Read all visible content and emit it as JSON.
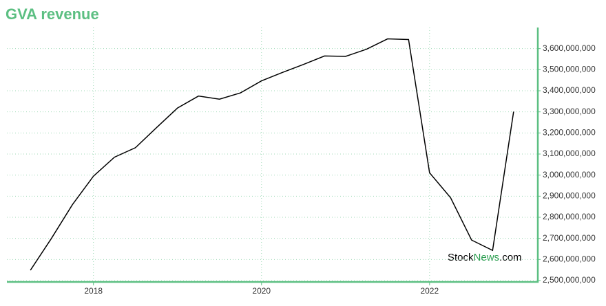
{
  "chart_data": {
    "type": "line",
    "title": "GVA revenue",
    "x": [
      2017.25,
      2017.5,
      2017.75,
      2018.0,
      2018.25,
      2018.5,
      2018.75,
      2019.0,
      2019.25,
      2019.5,
      2019.75,
      2020.0,
      2020.25,
      2020.5,
      2020.75,
      2021.0,
      2021.25,
      2021.5,
      2021.75,
      2022.0,
      2022.25,
      2022.5,
      2022.75,
      2023.0
    ],
    "series": [
      {
        "name": "GVA revenue",
        "color": "#000000",
        "values": [
          2549000000,
          2700000000,
          2860000000,
          2995000000,
          3085000000,
          3130000000,
          3225000000,
          3318000000,
          3375000000,
          3360000000,
          3390000000,
          3447000000,
          3487000000,
          3525000000,
          3565000000,
          3563000000,
          3597000000,
          3646000000,
          3643000000,
          3011000000,
          2893000000,
          2692000000,
          2643000000,
          3301000000
        ]
      }
    ],
    "xlim": [
      2016.97,
      2023.28
    ],
    "xticks": [
      2018,
      2020,
      2022
    ],
    "ylim": [
      2500000000,
      3700000000
    ],
    "yticks": [
      {
        "value": 2500000000,
        "label": "2,500,000,000"
      },
      {
        "value": 2600000000,
        "label": "2,600,000,000"
      },
      {
        "value": 2700000000,
        "label": "2,700,000,000"
      },
      {
        "value": 2800000000,
        "label": "2,800,000,000"
      },
      {
        "value": 2900000000,
        "label": "2,900,000,000"
      },
      {
        "value": 3000000000,
        "label": "3,000,000,000"
      },
      {
        "value": 3100000000,
        "label": "3,100,000,000"
      },
      {
        "value": 3200000000,
        "label": "3,200,000,000"
      },
      {
        "value": 3300000000,
        "label": "3,300,000,000"
      },
      {
        "value": 3400000000,
        "label": "3,400,000,000"
      },
      {
        "value": 3500000000,
        "label": "3,500,000,000"
      },
      {
        "value": 3600000000,
        "label": "3,600,000,000"
      }
    ],
    "grid": true,
    "axis_color": "#5cbf82",
    "watermark": {
      "part1": "Stock",
      "part2": "News",
      "part3": ".com"
    }
  }
}
